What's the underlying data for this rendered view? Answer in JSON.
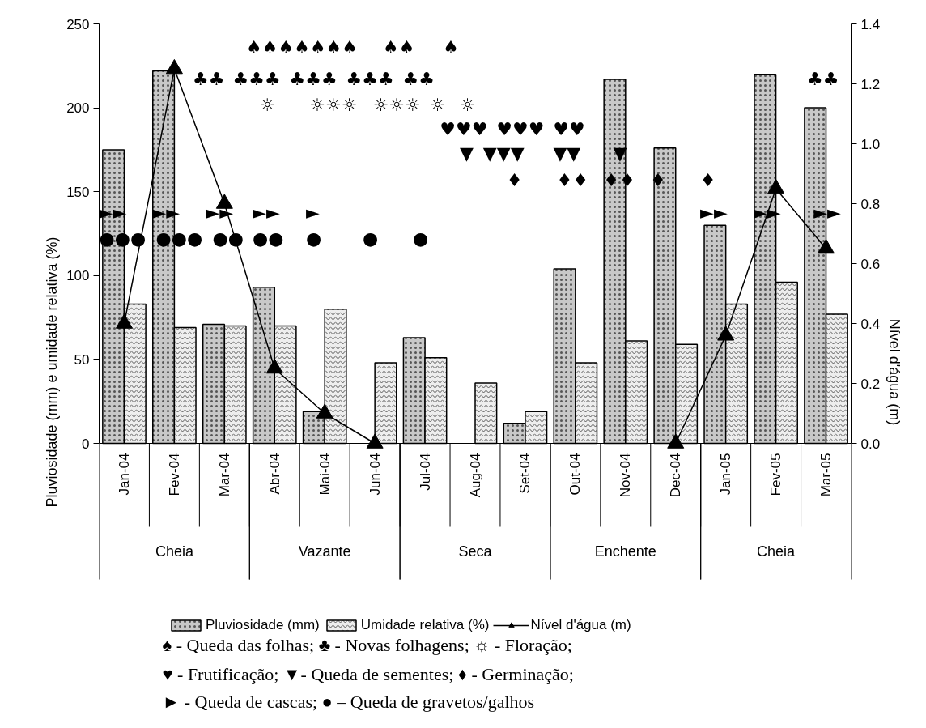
{
  "chart_data": {
    "type": "bar",
    "categories": [
      "Jan-04",
      "Fev-04",
      "Mar-04",
      "Abr-04",
      "Mai-04",
      "Jun-04",
      "Jul-04",
      "Aug-04",
      "Set-04",
      "Out-04",
      "Nov-04",
      "Dec-04",
      "Jan-05",
      "Fev-05",
      "Mar-05"
    ],
    "series": [
      {
        "name": "Pluviosidade (mm)",
        "color": "#c8c8c8",
        "values": [
          175,
          222,
          71,
          93,
          19,
          null,
          63,
          null,
          12,
          104,
          217,
          176,
          130,
          220,
          200
        ]
      },
      {
        "name": "Umidade relativa (%)",
        "color": "#eeeeee",
        "values": [
          83,
          69,
          70,
          70,
          80,
          48,
          51,
          36,
          19,
          48,
          61,
          59,
          83,
          96,
          77
        ]
      },
      {
        "name": "Nível d'água (m)",
        "type": "line",
        "axis": "y2",
        "color": "#000000",
        "marker": "triangle",
        "values": [
          0.4,
          1.25,
          0.8,
          0.25,
          0.1,
          0.0,
          null,
          null,
          null,
          null,
          null,
          0.0,
          0.36,
          0.85,
          0.65
        ]
      }
    ],
    "ylabel": "Pluviosidade (mm) e umidade relativa (%)",
    "y2label": "Nível d'água (m)",
    "ylim": [
      0,
      250
    ],
    "yticks": [
      0,
      50,
      100,
      150,
      200,
      250
    ],
    "y2lim": [
      0,
      1.4
    ],
    "y2ticks": [
      {
        "value": 0,
        "label": "0.0"
      },
      0.2,
      0.4,
      0.6,
      0.8,
      {
        "value": 1,
        "label": "1.0"
      },
      1.2,
      1.4
    ],
    "grid": false,
    "legend": "bottom",
    "annotations": [
      "Cheia",
      "Vazante",
      "Seca",
      "Enchente",
      "Cheia",
      "                      ♠♠♠♠♠♠♠   ♠♠    ♠",
      "              ♣♣ ♣♣♣ ♣♣♣ ♣♣♣ ♣♣",
      "                                                                                                          ♣♣",
      "                        ☼     ☼☼☼  ☼☼☼ ☼  ☼",
      "                                                   ♥♥♥ ♥♥♥ ♥♥",
      "                                                      ▼ ▼▼▼   ▼▼    ▼",
      "                                                             ♦     ♦♦  ♦♦  ♦     ♦",
      "►►   ►►   ►►  ►►   ►",
      "                                                                                          ►►   ►►    ►►",
      "●●● ●●● ●● ●●   ●      ●     ●",
      "♠ - Queda das folhas; ♣ - Novas folhagens;   ☼ - Floração;",
      "♥ - Frutificação;       ▼- Queda de sementes; ♦ - Germinação;",
      "► - Queda de cascas; ● – Queda de gravetos/galhos"
    ]
  }
}
